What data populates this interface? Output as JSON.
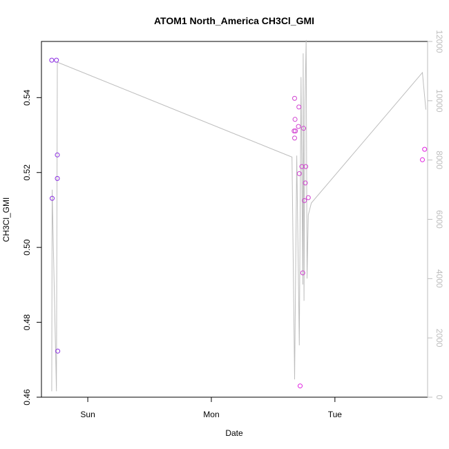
{
  "chart_data": {
    "type": "scatter",
    "title": "ATOM1 North_America CH3Cl_GMI",
    "xlabel": "Date",
    "ylabel": "CH3Cl_GMI",
    "x_tick_labels": [
      "Sun",
      "Mon",
      "Tue"
    ],
    "y_ticks": [
      0.46,
      0.48,
      0.5,
      0.52,
      0.54
    ],
    "y_tick_labels": [
      "0.46",
      "0.48",
      "0.50",
      "0.52",
      "0.54"
    ],
    "y_right_ticks": [
      0,
      2000,
      4000,
      6000,
      8000,
      10000,
      12000
    ],
    "y_right_tick_labels": [
      "0",
      "2000",
      "4000",
      "6000",
      "8000",
      "10000",
      "12000"
    ],
    "xlim": [
      "2016-07-30 15:00",
      "2016-08-02 18:00"
    ],
    "ylim": [
      0.46,
      0.555
    ],
    "y_right_lim": [
      0,
      12000
    ],
    "colors": {
      "line": "#bdbdbd",
      "point_purple": "#8a2be2",
      "point_magenta": "#e01ee0",
      "axis": "#000000",
      "right_axis": "#bdbdbd"
    },
    "series": [
      {
        "values": [
          {
            "x": "2016-07-30 17:00",
            "y": 0.55,
            "color": "#8a2be2"
          },
          {
            "x": "2016-07-30 17:05",
            "y": 0.5131,
            "color": "#8a2be2"
          },
          {
            "x": "2016-07-30 17:55",
            "y": 0.55,
            "color": "#8a2be2"
          },
          {
            "x": "2016-07-30 18:05",
            "y": 0.5247,
            "color": "#8a2be2"
          },
          {
            "x": "2016-07-30 18:05",
            "y": 0.5184,
            "color": "#8a2be2"
          },
          {
            "x": "2016-07-30 18:10",
            "y": 0.4723,
            "color": "#8a2be2"
          },
          {
            "x": "2016-08-01 16:05",
            "y": 0.5311,
            "color": "#d040d0"
          },
          {
            "x": "2016-08-01 16:10",
            "y": 0.5398,
            "color": "#d040d0"
          },
          {
            "x": "2016-08-01 16:10",
            "y": 0.5292,
            "color": "#d040d0"
          },
          {
            "x": "2016-08-01 16:15",
            "y": 0.5342,
            "color": "#d040d0"
          },
          {
            "x": "2016-08-01 16:20",
            "y": 0.5311,
            "color": "#d040d0"
          },
          {
            "x": "2016-08-01 16:55",
            "y": 0.5323,
            "color": "#d040d0"
          },
          {
            "x": "2016-08-01 17:00",
            "y": 0.5375,
            "color": "#d040d0"
          },
          {
            "x": "2016-08-01 17:05",
            "y": 0.5197,
            "color": "#d040d0"
          },
          {
            "x": "2016-08-01 17:15",
            "y": 0.463,
            "color": "#e01ee0"
          },
          {
            "x": "2016-08-01 17:35",
            "y": 0.5216,
            "color": "#d040d0"
          },
          {
            "x": "2016-08-01 17:45",
            "y": 0.4932,
            "color": "#d040d0"
          },
          {
            "x": "2016-08-01 17:55",
            "y": 0.5318,
            "color": "#d040d0"
          },
          {
            "x": "2016-08-01 18:05",
            "y": 0.5125,
            "color": "#d040d0"
          },
          {
            "x": "2016-08-01 18:15",
            "y": 0.5172,
            "color": "#d040d0"
          },
          {
            "x": "2016-08-01 18:20",
            "y": 0.5216,
            "color": "#d040d0"
          },
          {
            "x": "2016-08-01 18:50",
            "y": 0.5133,
            "color": "#d040d0"
          },
          {
            "x": "2016-08-02 17:00",
            "y": 0.5234,
            "color": "#e01ee0"
          },
          {
            "x": "2016-08-02 17:25",
            "y": 0.5262,
            "color": "#e01ee0"
          }
        ]
      },
      {
        "axis": "right",
        "type": "line",
        "values": [
          {
            "x": "2016-07-30 17:00",
            "y": 200
          },
          {
            "x": "2016-07-30 17:05",
            "y": 7000
          },
          {
            "x": "2016-07-30 17:55",
            "y": 200
          },
          {
            "x": "2016-07-30 18:05",
            "y": 11300
          },
          {
            "x": "2016-08-01 15:40",
            "y": 8100
          },
          {
            "x": "2016-08-01 16:10",
            "y": 600
          },
          {
            "x": "2016-08-01 16:35",
            "y": 8150
          },
          {
            "x": "2016-08-01 17:05",
            "y": 1750
          },
          {
            "x": "2016-08-01 17:25",
            "y": 10800
          },
          {
            "x": "2016-08-01 17:45",
            "y": 3800
          },
          {
            "x": "2016-08-01 17:50",
            "y": 11600
          },
          {
            "x": "2016-08-01 18:00",
            "y": 3250
          },
          {
            "x": "2016-08-01 18:10",
            "y": 9800
          },
          {
            "x": "2016-08-01 18:25",
            "y": 12050
          },
          {
            "x": "2016-08-01 18:35",
            "y": 4000
          },
          {
            "x": "2016-08-01 18:50",
            "y": 6150
          },
          {
            "x": "2016-08-01 19:25",
            "y": 6550
          },
          {
            "x": "2016-08-02 17:00",
            "y": 10950
          },
          {
            "x": "2016-08-02 17:40",
            "y": 9700
          }
        ]
      }
    ]
  }
}
